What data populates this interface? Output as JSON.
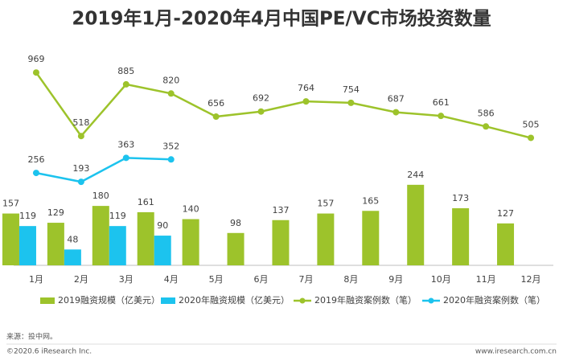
{
  "chart_data": {
    "type": "bar",
    "title": "2019年1月-2020年4月中国PE/VC市场投资数量",
    "categories": [
      "1月",
      "2月",
      "3月",
      "4月",
      "5月",
      "6月",
      "7月",
      "8月",
      "9月",
      "10月",
      "11月",
      "12月"
    ],
    "ylim": [
      0,
      670
    ],
    "y2lim": [
      -400,
      1170
    ],
    "legend": "bottom",
    "series": [
      {
        "name": "2019融资规模（亿美元）",
        "color": "#9dc32b",
        "type": "bar",
        "values": [
          157,
          129,
          180,
          161,
          140,
          98,
          137,
          157,
          165,
          244,
          173,
          127
        ]
      },
      {
        "name": "2020年融资规模（亿美元）",
        "color": "#1cc3ee",
        "type": "bar",
        "values": [
          119,
          48,
          119,
          90,
          null,
          null,
          null,
          null,
          null,
          null,
          null,
          null
        ]
      },
      {
        "name": "2019年融资案例数（笔）",
        "color": "#9dc32b",
        "type": "line",
        "axis": "y2",
        "values": [
          969,
          518,
          885,
          820,
          656,
          692,
          764,
          754,
          687,
          661,
          586,
          505
        ]
      },
      {
        "name": "2020年融资案例数（笔）",
        "color": "#1cc3ee",
        "type": "line",
        "axis": "y2",
        "values": [
          256,
          193,
          363,
          352,
          null,
          null,
          null,
          null,
          null,
          null,
          null,
          null
        ]
      }
    ]
  },
  "footer": {
    "source": "来源：投中网。",
    "copyright": "©2020.6 iResearch Inc.",
    "website": "www.iresearch.com.cn"
  }
}
